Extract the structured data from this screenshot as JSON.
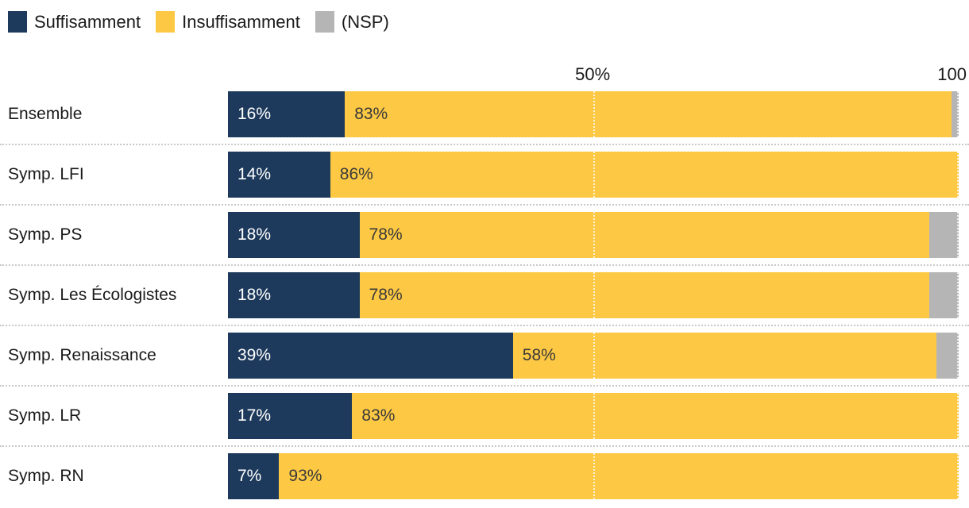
{
  "legend": [
    {
      "label": "Suffisamment",
      "color": "#1d3a5c"
    },
    {
      "label": "Insuffisamment",
      "color": "#fdc843"
    },
    {
      "label": "(NSP)",
      "color": "#b5b5b5"
    }
  ],
  "axis": {
    "tick_50": "50%",
    "tick_100": "100"
  },
  "colors": {
    "suffisamment": "#1d3a5c",
    "insuffisamment": "#fdc843",
    "nsp": "#b5b5b5",
    "value_on_dark": "#ffffff",
    "value_on_light": "#3a3a3a",
    "separator": "#c9c9c9",
    "background": "#ffffff"
  },
  "chart_data": {
    "type": "bar",
    "orientation": "horizontal",
    "stacked": true,
    "title": "",
    "xlabel": "",
    "ylabel": "",
    "xlim": [
      0,
      100
    ],
    "gridlines_at": [
      50,
      100
    ],
    "grid": true,
    "legend_position": "top-left",
    "categories": [
      "Ensemble",
      "Symp. LFI",
      "Symp. PS",
      "Symp. Les Écologistes",
      "Symp. Renaissance",
      "Symp. LR",
      "Symp. RN"
    ],
    "series": [
      {
        "name": "Suffisamment",
        "color": "#1d3a5c",
        "values": [
          16,
          14,
          18,
          18,
          39,
          17,
          7
        ],
        "labels": [
          "16%",
          "14%",
          "18%",
          "18%",
          "39%",
          "17%",
          "7%"
        ]
      },
      {
        "name": "Insuffisamment",
        "color": "#fdc843",
        "values": [
          83,
          86,
          78,
          78,
          58,
          83,
          93
        ],
        "labels": [
          "83%",
          "86%",
          "78%",
          "78%",
          "58%",
          "83%",
          "93%"
        ]
      },
      {
        "name": "(NSP)",
        "color": "#b5b5b5",
        "values": [
          1,
          0,
          4,
          4,
          3,
          0,
          0
        ],
        "labels": [
          "",
          "",
          "",
          "",
          "",
          "",
          ""
        ]
      }
    ]
  }
}
